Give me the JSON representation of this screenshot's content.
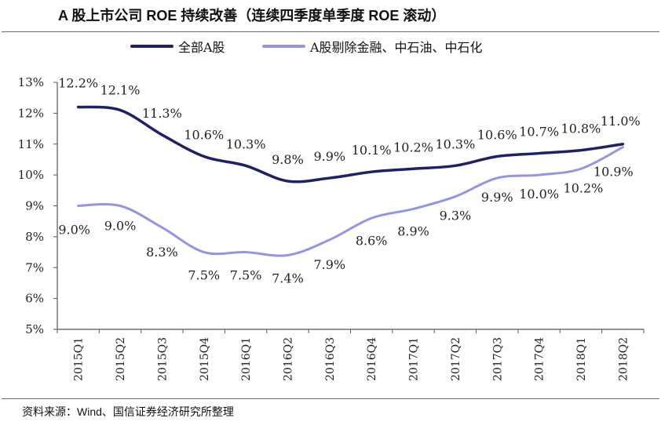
{
  "title": "A 股上市公司 ROE 持续改善（连续四季度单季度 ROE 滚动）",
  "source": "资料来源：Wind、国信证券经济研究所整理",
  "colors": {
    "series1": "#1f1f6b",
    "series2": "#9494e6",
    "axis": "#555555",
    "text": "#222222"
  },
  "chart_data": {
    "type": "line",
    "categories": [
      "2015Q1",
      "2015Q2",
      "2015Q3",
      "2015Q4",
      "2016Q1",
      "2016Q2",
      "2016Q3",
      "2016Q4",
      "2017Q1",
      "2017Q2",
      "2017Q3",
      "2017Q4",
      "2018Q1",
      "2018Q2"
    ],
    "y_ticks": [
      "13%",
      "12%",
      "11%",
      "10%",
      "9%",
      "8%",
      "7%",
      "6%",
      "5%"
    ],
    "ylim": [
      5,
      13
    ],
    "y_unit": "%",
    "grid": false,
    "legend_position": "top",
    "series": [
      {
        "name": "全部A股",
        "values": [
          12.2,
          12.1,
          11.3,
          10.6,
          10.3,
          9.8,
          9.9,
          10.1,
          10.2,
          10.3,
          10.6,
          10.7,
          10.8,
          11.0
        ],
        "labels": [
          "12.2%",
          "12.1%",
          "11.3%",
          "10.6%",
          "10.3%",
          "9.8%",
          "9.9%",
          "10.1%",
          "10.2%",
          "10.3%",
          "10.6%",
          "10.7%",
          "10.8%",
          "11.0%"
        ]
      },
      {
        "name": "A股剔除金融、中石油、中石化",
        "values": [
          9.0,
          9.0,
          8.3,
          7.5,
          7.5,
          7.4,
          7.9,
          8.6,
          8.9,
          9.3,
          9.9,
          10.0,
          10.2,
          10.9
        ],
        "labels": [
          "9.0%",
          "9.0%",
          "8.3%",
          "7.5%",
          "7.5%",
          "7.4%",
          "7.9%",
          "8.6%",
          "8.9%",
          "9.3%",
          "9.9%",
          "10.0%",
          "10.2%",
          "10.9%"
        ]
      }
    ]
  }
}
